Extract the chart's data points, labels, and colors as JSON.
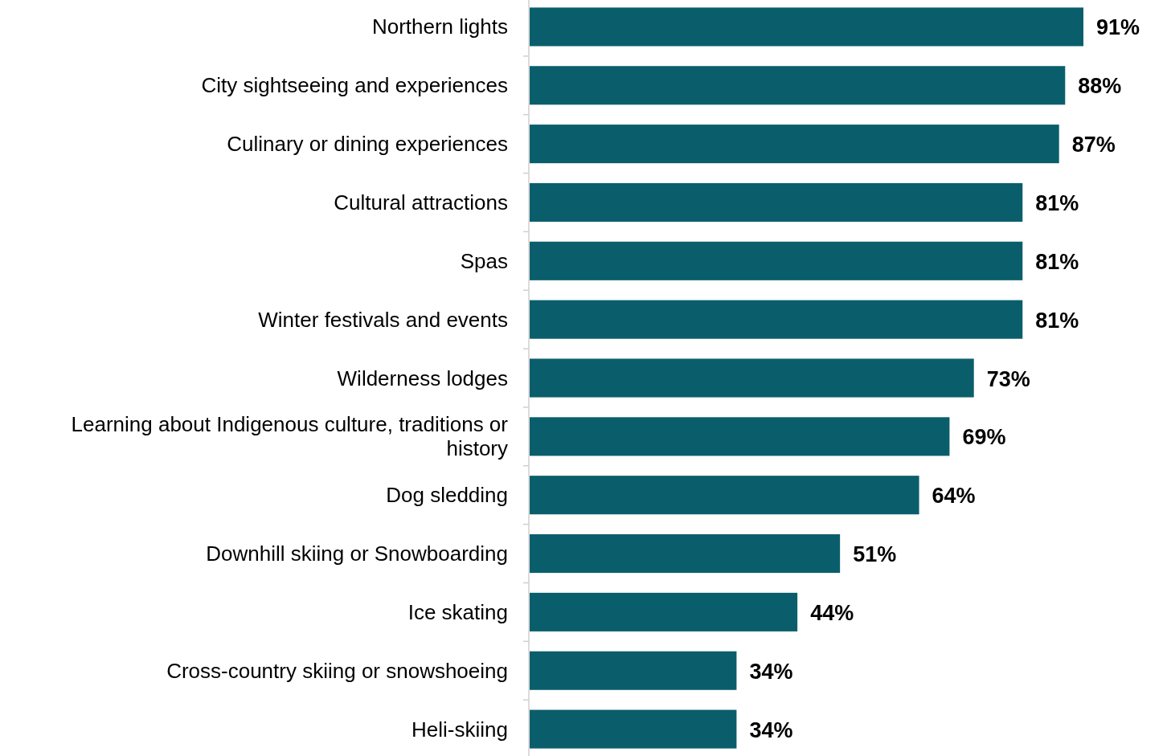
{
  "chart_data": {
    "type": "bar",
    "orientation": "horizontal",
    "categories": [
      "Northern lights",
      "City sightseeing and experiences",
      "Culinary or dining experiences",
      "Cultural attractions",
      "Spas",
      "Winter festivals and events",
      "Wilderness lodges",
      "Learning about Indigenous culture, traditions or history",
      "Dog sledding",
      "Downhill skiing or Snowboarding",
      "Ice skating",
      "Cross-country skiing or snowshoeing",
      "Heli-skiing"
    ],
    "values": [
      91,
      88,
      87,
      81,
      81,
      81,
      73,
      69,
      64,
      51,
      44,
      34,
      34
    ],
    "value_labels": [
      "91%",
      "88%",
      "87%",
      "81%",
      "81%",
      "81%",
      "73%",
      "69%",
      "64%",
      "51%",
      "44%",
      "34%",
      "34%"
    ],
    "color": "#0a5e6c"
  }
}
